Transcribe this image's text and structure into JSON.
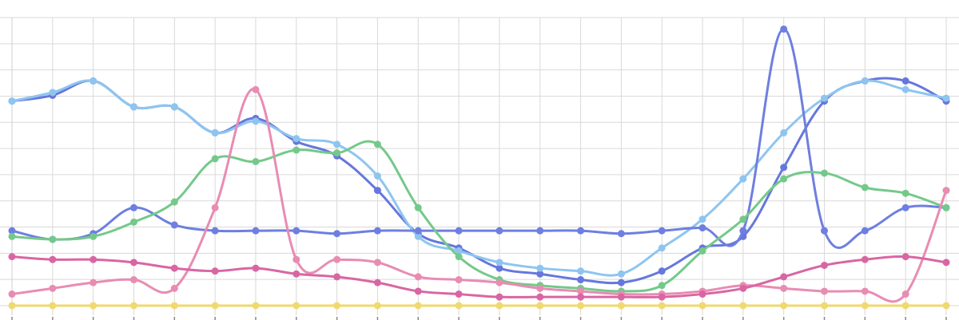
{
  "chart_data": {
    "type": "line",
    "title": "",
    "xlabel": "",
    "ylabel": "",
    "grid": true,
    "legend": "none",
    "x": [
      1,
      2,
      3,
      4,
      5,
      6,
      7,
      8,
      9,
      10,
      11,
      12,
      13,
      14,
      15,
      16,
      17,
      18,
      19,
      20,
      21,
      22,
      23,
      24
    ],
    "ylim": [
      0,
      100
    ],
    "series": [
      {
        "color": "#6677dd",
        "values": [
          71,
          73,
          78,
          69,
          69,
          60,
          65,
          57,
          52,
          40,
          25,
          20,
          13,
          11,
          9,
          8,
          12,
          20,
          24,
          48,
          71,
          78,
          78,
          71
        ]
      },
      {
        "color": "#8ec5f0",
        "values": [
          71,
          74,
          78,
          69,
          69,
          60,
          64,
          58,
          56,
          45,
          24,
          19,
          15,
          13,
          12,
          11,
          20,
          30,
          44,
          60,
          72,
          78,
          75,
          72
        ]
      },
      {
        "color": "#6e7fe0",
        "values": [
          26,
          23,
          25,
          34,
          28,
          26,
          26,
          26,
          25,
          26,
          26,
          26,
          26,
          26,
          26,
          25,
          26,
          27,
          26,
          96,
          26,
          26,
          34,
          34
        ]
      },
      {
        "color": "#74c98a",
        "values": [
          24,
          23,
          24,
          29,
          36,
          51,
          50,
          54,
          53,
          56,
          34,
          17,
          9,
          7,
          6,
          5,
          7,
          19,
          30,
          44,
          46,
          41,
          39,
          34
        ]
      },
      {
        "color": "#e88cb2",
        "values": [
          4,
          6,
          8,
          9,
          6,
          34,
          75,
          16,
          16,
          15,
          10,
          9,
          8,
          6,
          5,
          4,
          4,
          5,
          7,
          6,
          5,
          5,
          4,
          40
        ]
      },
      {
        "color": "#d966a3",
        "values": [
          17,
          16,
          16,
          15,
          13,
          12,
          13,
          11,
          10,
          8,
          5,
          4,
          3,
          3,
          3,
          3,
          3,
          4,
          6,
          10,
          14,
          16,
          17,
          15
        ]
      },
      {
        "color": "#f0d96e",
        "values": [
          0,
          0,
          0,
          0,
          0,
          0,
          0,
          0,
          0,
          0,
          0,
          0,
          0,
          0,
          0,
          0,
          0,
          0,
          0,
          0,
          0,
          0,
          0,
          0
        ]
      }
    ]
  }
}
